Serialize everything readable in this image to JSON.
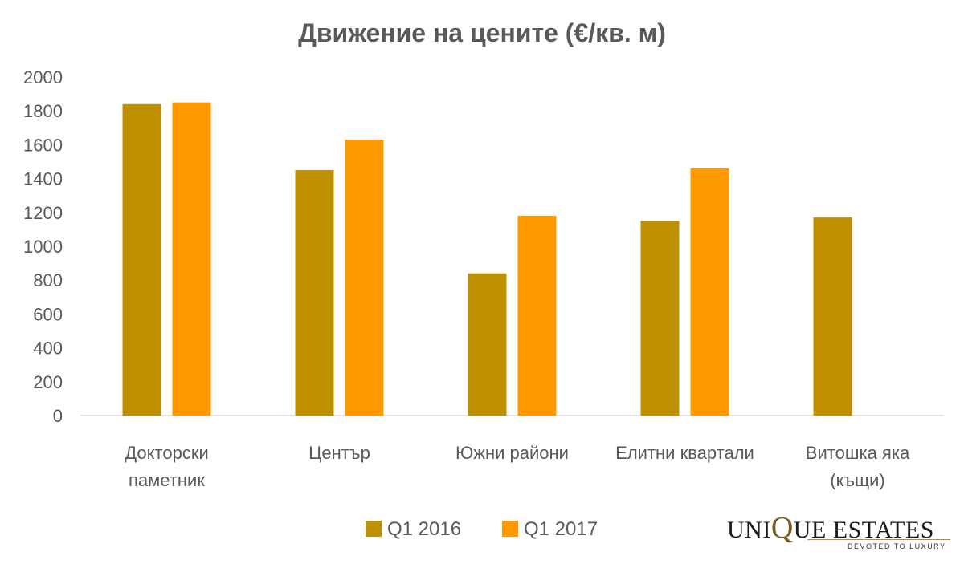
{
  "chart_data": {
    "type": "bar",
    "title": "Движение на цените (€/кв. м)",
    "categories": [
      [
        "Докторски",
        "паметник"
      ],
      [
        "Център"
      ],
      [
        "Южни райони"
      ],
      [
        "Елитни квартали"
      ],
      [
        "Витошка яка",
        "(къщи)"
      ]
    ],
    "series": [
      {
        "name": "Q1 2016",
        "color": "#BF9000",
        "values": [
          1840,
          1450,
          840,
          1150,
          1170
        ]
      },
      {
        "name": "Q1 2017",
        "color": "#FF9900",
        "values": [
          1850,
          1630,
          1180,
          1460,
          null
        ]
      }
    ],
    "ylim": [
      0,
      2000
    ],
    "yticks": [
      "0",
      "200",
      "400",
      "600",
      "800",
      "1000",
      "1200",
      "1400",
      "1600",
      "1800",
      "2000"
    ],
    "grid": false,
    "legend_position": "bottom",
    "title_color": "#595959",
    "axis_text_color": "#595959"
  },
  "logo": {
    "main_left": "UNI",
    "main_mid": "Q",
    "main_right": "UE ESTATES",
    "tagline": "DEVOTED TO LUXURY"
  }
}
